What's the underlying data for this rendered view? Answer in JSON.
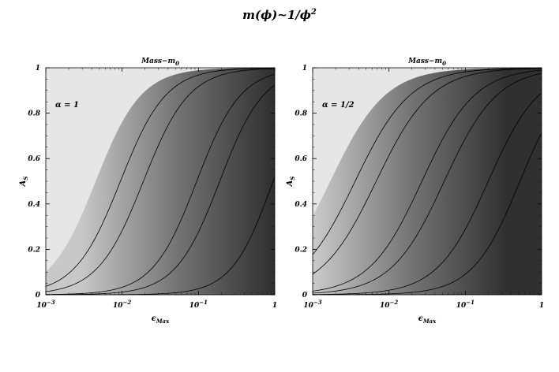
{
  "title": {
    "main": "m(ϕ)~1/ϕ",
    "exponent": "2"
  },
  "chart_data": [
    {
      "type": "contour",
      "title": "Mass−m",
      "title_subscript": "0",
      "xlabel": "ϵ",
      "xlabel_subscript": "Max",
      "ylabel": "A",
      "ylabel_subscript": "S",
      "x_scale": "log",
      "xlim": [
        0.001,
        1
      ],
      "ylim": [
        0,
        1
      ],
      "x_ticks": [
        {
          "value": 0.001,
          "base": "10",
          "exp": "−3"
        },
        {
          "value": 0.01,
          "base": "10",
          "exp": "−2"
        },
        {
          "value": 0.1,
          "base": "10",
          "exp": "−1"
        },
        {
          "value": 1,
          "base": "1",
          "exp": ""
        }
      ],
      "y_ticks": [
        {
          "value": 0,
          "label": "0"
        },
        {
          "value": 0.2,
          "label": "0.2"
        },
        {
          "value": 0.4,
          "label": "0.4"
        },
        {
          "value": 0.6,
          "label": "0.6"
        },
        {
          "value": 0.8,
          "label": "0.8"
        },
        {
          "value": 1,
          "label": "1"
        }
      ],
      "annotation": "α = 1",
      "boundary_color": "#e6e6e6",
      "fill_color_light": "#c8c8c8",
      "fill_color_dark": "#303030",
      "region_boundary": {
        "x50": 0.0045,
        "k": 1.45
      },
      "contours": [
        {
          "x50": 0.0095,
          "k": 1.45
        },
        {
          "x50": 0.019,
          "k": 1.45
        },
        {
          "x50": 0.095,
          "k": 1.5
        },
        {
          "x50": 0.19,
          "k": 1.5
        },
        {
          "x50": 0.95,
          "k": 1.6
        }
      ],
      "dark_x": 0.95
    },
    {
      "type": "contour",
      "title": "Mass−m",
      "title_subscript": "0",
      "xlabel": "ϵ",
      "xlabel_subscript": "Max",
      "ylabel": "A",
      "ylabel_subscript": "S",
      "x_scale": "log",
      "xlim": [
        0.001,
        1
      ],
      "ylim": [
        0,
        1
      ],
      "x_ticks": [
        {
          "value": 0.001,
          "base": "10",
          "exp": "−3"
        },
        {
          "value": 0.01,
          "base": "10",
          "exp": "−2"
        },
        {
          "value": 0.1,
          "base": "10",
          "exp": "−1"
        },
        {
          "value": 1,
          "base": "1",
          "exp": ""
        }
      ],
      "y_ticks": [
        {
          "value": 0,
          "label": "0"
        },
        {
          "value": 0.2,
          "label": "0.2"
        },
        {
          "value": 0.4,
          "label": "0.4"
        },
        {
          "value": 0.6,
          "label": "0.6"
        },
        {
          "value": 0.8,
          "label": "0.8"
        },
        {
          "value": 1,
          "label": "1"
        }
      ],
      "annotation": "α = 1/2",
      "boundary_color": "#e6e6e6",
      "fill_color_light": "#c8c8c8",
      "fill_color_dark": "#303030",
      "region_boundary": {
        "x50": 0.0017,
        "k": 1.2
      },
      "contours": [
        {
          "x50": 0.0036,
          "k": 1.2
        },
        {
          "x50": 0.0068,
          "k": 1.2
        },
        {
          "x50": 0.027,
          "k": 1.25
        },
        {
          "x50": 0.053,
          "k": 1.25
        },
        {
          "x50": 0.2,
          "k": 1.3
        },
        {
          "x50": 0.52,
          "k": 1.4
        }
      ],
      "dark_x": 0.35
    }
  ]
}
